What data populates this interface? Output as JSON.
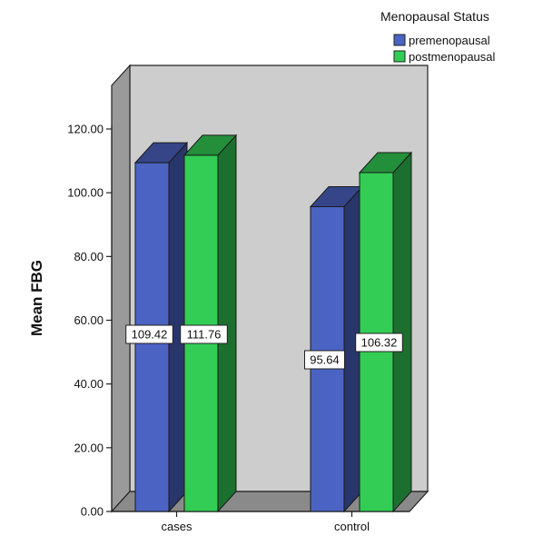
{
  "chart_data": {
    "type": "bar",
    "style": "3d-clustered",
    "categories": [
      "cases",
      "control"
    ],
    "series": [
      {
        "name": "premenopausal",
        "values": [
          109.42,
          95.64
        ],
        "color": "#4b63c2"
      },
      {
        "name": "postmenopausal",
        "values": [
          111.76,
          106.32
        ],
        "color": "#33cc55"
      }
    ],
    "data_labels": [
      [
        "109.42",
        "95.64"
      ],
      [
        "111.76",
        "106.32"
      ]
    ],
    "xlabel": "",
    "ylabel": "Mean FBG",
    "ylim": [
      0,
      120
    ],
    "yticks": [
      "0.00",
      "20.00",
      "40.00",
      "60.00",
      "80.00",
      "100.00",
      "120.00"
    ],
    "ytick_values": [
      0,
      20,
      40,
      60,
      80,
      100,
      120
    ],
    "legend": {
      "title": "Menopausal Status",
      "position": "top-right"
    },
    "wall_color": "#cdcdcd",
    "floor_color": "#8a8a8a"
  }
}
